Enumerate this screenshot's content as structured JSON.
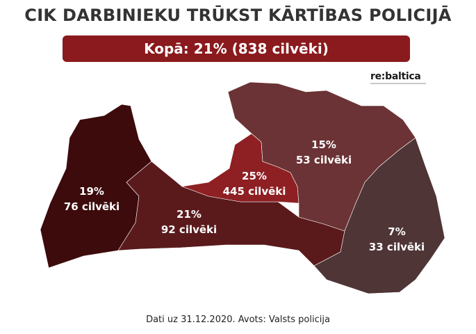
{
  "title": "CIK DARBINIEKU TRŪKST KĀRTĪBAS POLICIJĀ",
  "total": "Kopā: 21% (838 cilvēki)",
  "logo": "re:baltica",
  "source": "Dati uz 31.12.2020. Avots: Valsts policija",
  "regions": [
    {
      "percent": "19%",
      "people": "76 cilvēki",
      "share": 19,
      "count": 76,
      "color": "#3d0b0c"
    },
    {
      "percent": "21%",
      "people": "92 cilvēki",
      "share": 21,
      "count": 92,
      "color": "#5a1a1c"
    },
    {
      "percent": "25%",
      "people": "445 cilvēki",
      "share": 25,
      "count": 445,
      "color": "#8e2023"
    },
    {
      "percent": "15%",
      "people": "53 cilvēki",
      "share": 15,
      "count": 53,
      "color": "#6b3335"
    },
    {
      "percent": "7%",
      "people": "33 cilvēki",
      "share": 7,
      "count": 33,
      "color": "#4f3536"
    }
  ]
}
